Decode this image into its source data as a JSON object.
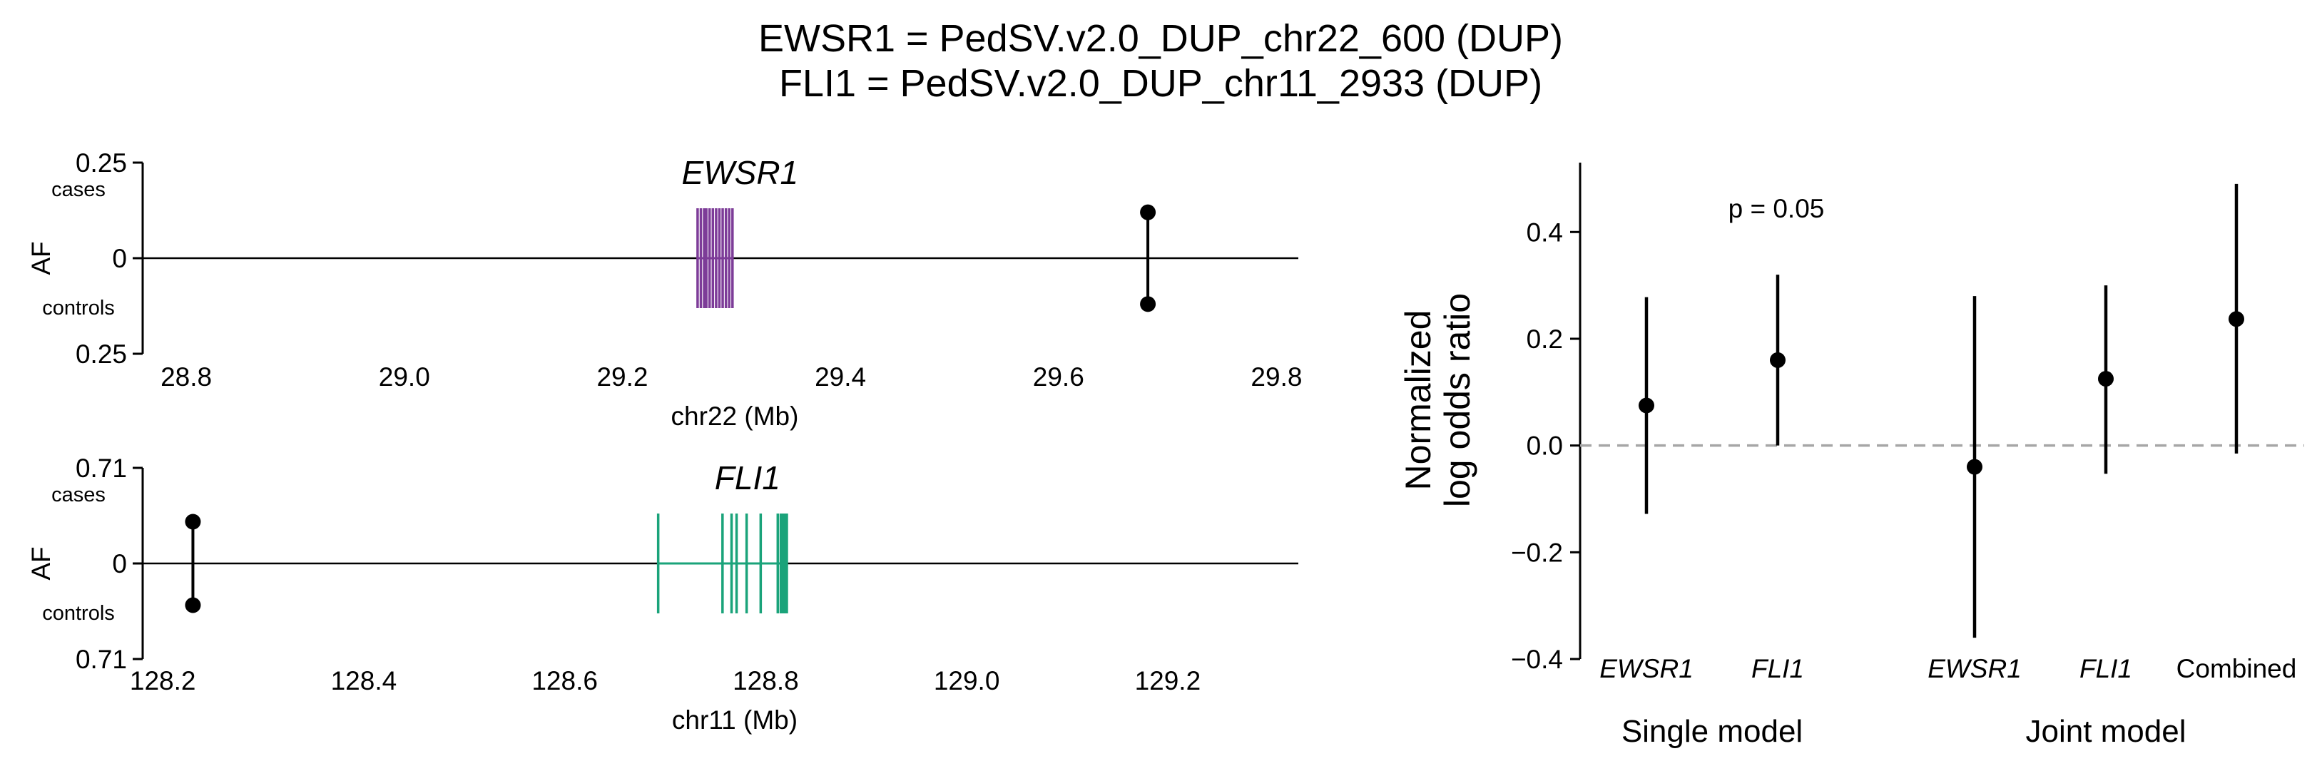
{
  "title_lines": [
    "EWSR1 = PedSV.v2.0_DUP_chr22_600 (DUP)",
    "FLI1 = PedSV.v2.0_DUP_chr11_2933 (DUP)"
  ],
  "chart_data": [
    {
      "type": "scatter",
      "panel": "EWSR1 locus",
      "gene_label": "EWSR1",
      "gene_color": "#7d3c98",
      "xlabel": "chr22 (Mb)",
      "ylabel": "AF",
      "xlim": [
        28.76,
        29.82
      ],
      "xticks": [
        28.8,
        29.0,
        29.2,
        29.4,
        29.6,
        29.8
      ],
      "xtick_labels": [
        "28.8",
        "29.0",
        "29.2",
        "29.4",
        "29.6",
        "29.8"
      ],
      "ytick_labels": [
        "0.25",
        "0",
        "0.25"
      ],
      "cases_label": "cases",
      "controls_label": "controls",
      "exons": [
        29.269,
        29.272,
        29.275,
        29.277,
        29.28,
        29.283,
        29.286,
        29.289,
        29.292,
        29.295,
        29.298,
        29.301
      ],
      "exon_range": [
        29.268,
        29.302
      ],
      "sv": {
        "position": 29.682,
        "cases_af": 0.12,
        "controls_af": 0.12
      }
    },
    {
      "type": "scatter",
      "panel": "FLI1 locus",
      "gene_label": "FLI1",
      "gene_color": "#1aa37a",
      "xlabel": "chr11 (Mb)",
      "ylabel": "AF",
      "xlim": [
        128.18,
        129.33
      ],
      "xticks": [
        128.2,
        128.4,
        128.6,
        128.8,
        129.0,
        129.2
      ],
      "xtick_labels": [
        "128.2",
        "128.4",
        "128.6",
        "128.8",
        "129.0",
        "129.2"
      ],
      "ytick_labels": [
        "0.71",
        "0",
        "0.71"
      ],
      "cases_label": "cases",
      "controls_label": "controls",
      "exons": [
        128.693,
        128.757,
        128.766,
        128.771,
        128.781,
        128.795,
        128.812,
        128.815,
        128.817,
        128.819,
        128.821
      ],
      "exon_range": [
        128.692,
        128.822
      ],
      "sv": {
        "position": 128.23,
        "cases_af": 0.31,
        "controls_af": 0.31
      }
    },
    {
      "type": "scatter",
      "panel": "Odds ratios",
      "ylabel_lines": [
        "Normalized",
        "log odds ratio"
      ],
      "ylim": [
        -0.4,
        0.53
      ],
      "yticks": [
        -0.4,
        -0.2,
        0.0,
        0.2,
        0.4
      ],
      "ytick_labels": [
        "−0.4",
        "−0.2",
        "0.0",
        "0.2",
        "0.4"
      ],
      "annotation": "p = 0.05",
      "reference_line": 0.0,
      "groups": [
        "Single model",
        "Joint model"
      ],
      "points": [
        {
          "label": "EWSR1",
          "italic": true,
          "group": "Single model",
          "estimate": 0.075,
          "ci_low": -0.128,
          "ci_high": 0.278
        },
        {
          "label": "FLI1",
          "italic": true,
          "group": "Single model",
          "estimate": 0.16,
          "ci_low": 0.0,
          "ci_high": 0.32
        },
        {
          "label": "EWSR1",
          "italic": true,
          "group": "Joint model",
          "estimate": -0.04,
          "ci_low": -0.36,
          "ci_high": 0.28
        },
        {
          "label": "FLI1",
          "italic": true,
          "group": "Joint model",
          "estimate": 0.125,
          "ci_low": -0.053,
          "ci_high": 0.3
        },
        {
          "label": "Combined",
          "italic": false,
          "group": "Joint model",
          "estimate": 0.237,
          "ci_low": -0.015,
          "ci_high": 0.49
        }
      ]
    }
  ]
}
